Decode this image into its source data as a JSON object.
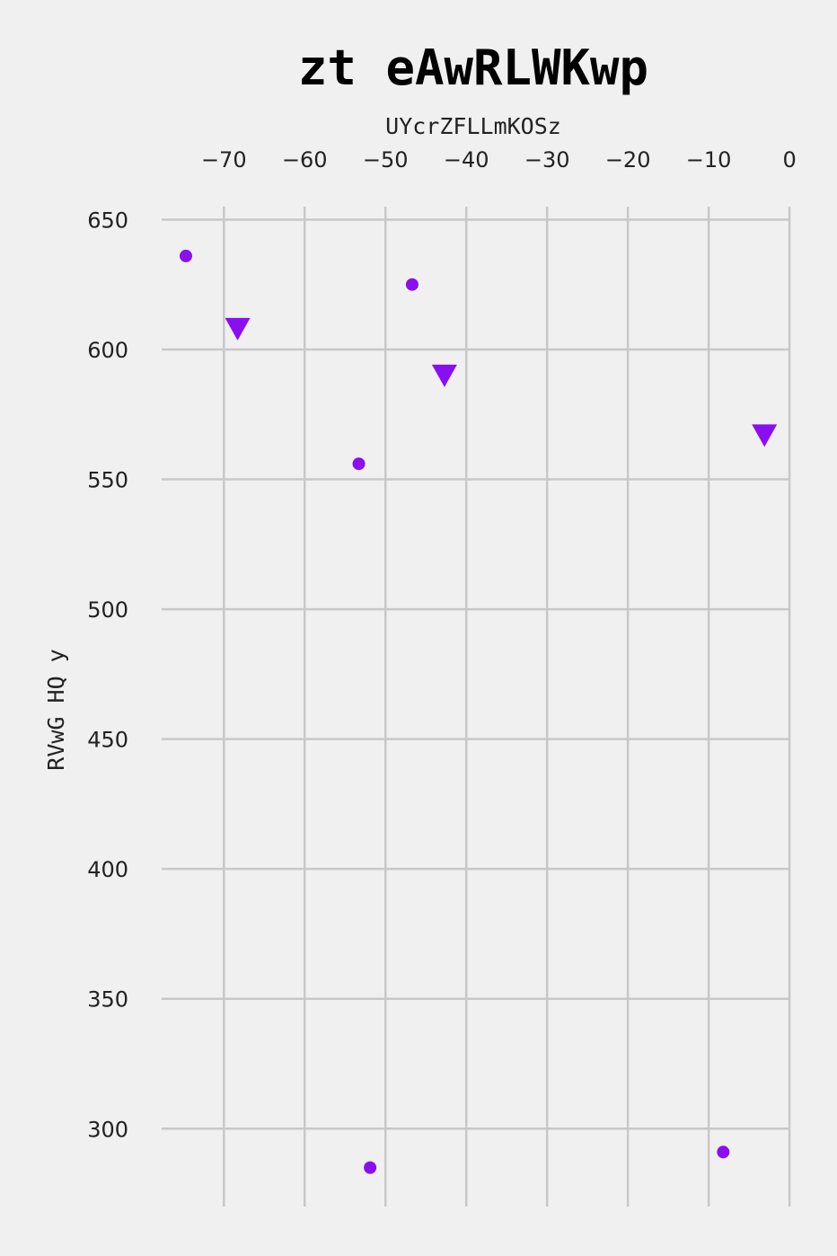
{
  "chart_data": {
    "type": "scatter",
    "title": "zt eAwRLWKwp",
    "xlabel": "UYcrZFLLmKOSz",
    "ylabel": "RVwG HQ y",
    "xlim": [
      -77.7,
      0.1
    ],
    "ylim": [
      270,
      655
    ],
    "xticks": [
      -70,
      -60,
      -50,
      -40,
      -30,
      -20,
      -10,
      0
    ],
    "yticks": [
      300,
      350,
      400,
      450,
      500,
      550,
      600,
      650
    ],
    "xaxis_position": "top",
    "grid": true,
    "color": "#8a0ff0",
    "series": [
      {
        "marker": "circle",
        "points": [
          {
            "x": -74.7,
            "y": 636
          },
          {
            "x": -46.7,
            "y": 625
          },
          {
            "x": -53.3,
            "y": 556
          },
          {
            "x": -51.9,
            "y": 285
          },
          {
            "x": -8.2,
            "y": 291
          }
        ]
      },
      {
        "marker": "triangle-down",
        "points": [
          {
            "x": -68.3,
            "y": 608
          },
          {
            "x": -42.7,
            "y": 590
          },
          {
            "x": -3.1,
            "y": 567
          }
        ]
      }
    ]
  }
}
